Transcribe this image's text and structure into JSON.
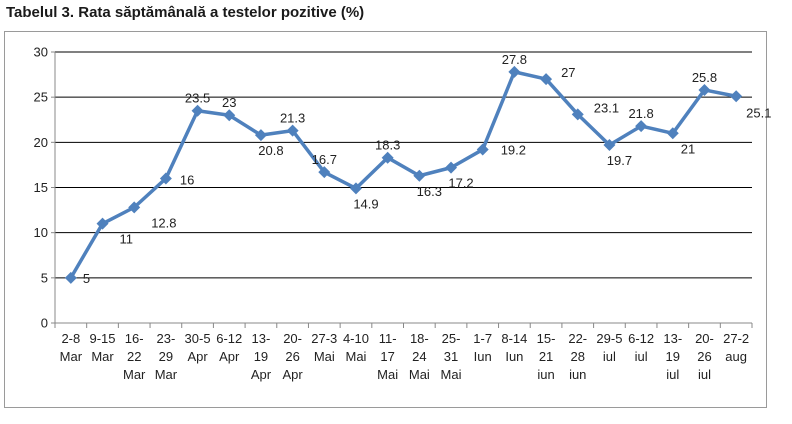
{
  "title": "Tabelul 3. Rata săptămânală a testelor pozitive (%)",
  "chart_data": {
    "type": "line",
    "title": "",
    "xlabel": "",
    "ylabel": "",
    "ylim": [
      0,
      30
    ],
    "yticks": [
      0,
      5,
      10,
      15,
      20,
      25,
      30
    ],
    "grid": true,
    "legend": "none",
    "categories": [
      [
        "2-8",
        "Mar"
      ],
      [
        "9-15",
        "Mar"
      ],
      [
        "16-",
        "22",
        "Mar"
      ],
      [
        "23-",
        "29",
        "Mar"
      ],
      [
        "30-5",
        "Apr"
      ],
      [
        "6-12",
        "Apr"
      ],
      [
        "13-",
        "19",
        "Apr"
      ],
      [
        "20-",
        "26",
        "Apr"
      ],
      [
        "27-3",
        "Mai"
      ],
      [
        "4-10",
        "Mai"
      ],
      [
        "11-",
        "17",
        "Mai"
      ],
      [
        "18-",
        "24",
        "Mai"
      ],
      [
        "25-",
        "31",
        "Mai"
      ],
      [
        "1-7",
        "Iun"
      ],
      [
        "8-14",
        "Iun"
      ],
      [
        "15-",
        "21",
        "iun"
      ],
      [
        "22-",
        "28",
        "iun"
      ],
      [
        "29-5",
        "iul"
      ],
      [
        "6-12",
        "iul"
      ],
      [
        "13-",
        "19",
        "iul"
      ],
      [
        "20-",
        "26",
        "iul"
      ],
      [
        "27-2",
        "aug"
      ]
    ],
    "series": [
      {
        "name": "",
        "color": "#4f81bd",
        "marker": "diamond",
        "values": [
          5,
          11,
          12.8,
          16,
          23.5,
          23,
          20.8,
          21.3,
          16.7,
          14.9,
          18.3,
          16.3,
          17.2,
          19.2,
          27.8,
          27,
          23.1,
          19.7,
          21.8,
          21,
          25.8,
          25.1
        ],
        "labels": [
          "5",
          "11",
          "12.8",
          "16",
          "23.5",
          "23",
          "20.8",
          "21.3",
          "16.7",
          "14.9",
          "18.3",
          "16.3",
          "17.2",
          "19.2",
          "27.8",
          "27",
          "23.1",
          "19.7",
          "21.8",
          "21",
          "25.8",
          "25.1"
        ]
      }
    ]
  }
}
